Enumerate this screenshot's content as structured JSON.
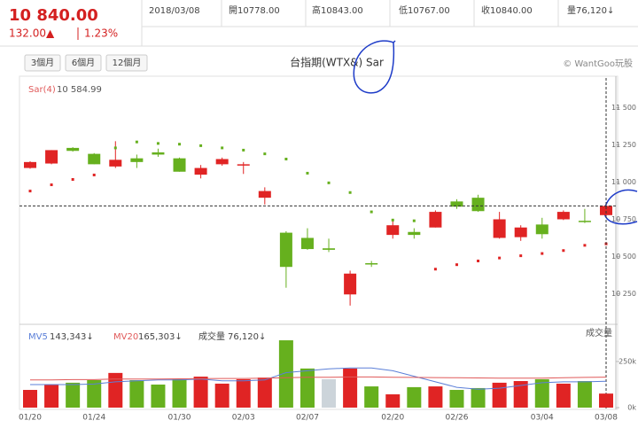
{
  "header": {
    "price": "10 840.00",
    "change": "132.00▲",
    "percent": "1.23%",
    "date": "2018/03/08",
    "open": "開10778.00",
    "high": "高10843.00",
    "low": "低10767.00",
    "close": "收10840.00",
    "volume": "量76,120↓"
  },
  "buttons": [
    "3個月",
    "6個月",
    "12個月"
  ],
  "copyright": "© WantGoo玩股",
  "chart_data": [
    {
      "type": "candlestick",
      "title": "台指期(WTX&) Sar",
      "categories": [
        "01/20",
        null,
        null,
        "01/24",
        null,
        null,
        null,
        "01/30",
        null,
        null,
        "02/03",
        null,
        null,
        "02/07",
        null,
        null,
        null,
        "02/20",
        null,
        null,
        "02/26",
        null,
        null,
        null,
        "03/04",
        null,
        null,
        "03/08"
      ],
      "open": [
        11095,
        11125,
        11230,
        11190,
        11105,
        11160,
        11200,
        11160,
        11050,
        11120,
        11115,
        10895,
        10660,
        10625,
        10555,
        10245,
        10455,
        10645,
        10665,
        10695,
        10870,
        10895,
        10625,
        10630,
        10715,
        10750,
        10740,
        10778
      ],
      "high": [
        11140,
        11215,
        11235,
        11195,
        11275,
        11185,
        11225,
        11165,
        11115,
        11165,
        11135,
        10965,
        10670,
        10690,
        10620,
        10405,
        10470,
        10740,
        10690,
        10810,
        10885,
        10915,
        10800,
        10710,
        10760,
        10810,
        10820,
        10843
      ],
      "low": [
        11090,
        11120,
        11205,
        11120,
        11095,
        11095,
        11170,
        11070,
        11025,
        11110,
        11055,
        10850,
        10290,
        10545,
        10530,
        10170,
        10430,
        10620,
        10620,
        10695,
        10820,
        10800,
        10620,
        10605,
        10620,
        10745,
        10725,
        10767
      ],
      "close": [
        11135,
        11215,
        11210,
        11120,
        11150,
        11135,
        11185,
        11070,
        11095,
        11155,
        11120,
        10940,
        10430,
        10550,
        10545,
        10385,
        10450,
        10710,
        10645,
        10800,
        10835,
        10805,
        10750,
        10695,
        10650,
        10800,
        10735,
        10840
      ],
      "up_color": "#e02424",
      "down_color": "#66b01e",
      "sar": {
        "name": "Sar(4)",
        "current": "10 584.99",
        "values": [
          10940,
          10982,
          11018,
          11048,
          11230,
          11270,
          11260,
          11255,
          11245,
          11230,
          11215,
          11190,
          11155,
          11060,
          10995,
          10930,
          10800,
          10745,
          10740,
          10415,
          10445,
          10470,
          10490,
          10505,
          10520,
          10540,
          10575,
          10584.99
        ]
      },
      "ylim": [
        10050,
        11700
      ],
      "yticks": [
        {
          "value": 11500,
          "label": "11 500"
        },
        {
          "value": 11250,
          "label": "11 250"
        },
        {
          "value": 11000,
          "label": "11 000"
        },
        {
          "value": 10750,
          "label": "10 750"
        },
        {
          "value": 10500,
          "label": "10 500"
        },
        {
          "value": 10250,
          "label": "10 250"
        }
      ]
    },
    {
      "type": "bar",
      "title": "成交量",
      "current": "76,120↓",
      "values": [
        96000,
        125000,
        135000,
        149000,
        188000,
        149000,
        125000,
        154000,
        168000,
        130000,
        154000,
        163000,
        365000,
        212000,
        154000,
        212000,
        115000,
        72000,
        111000,
        115000,
        96000,
        106000,
        135000,
        144000,
        154000,
        130000,
        144000,
        76120
      ],
      "colors": [
        "#e02424",
        "#e02424",
        "#66b01e",
        "#66b01e",
        "#e02424",
        "#66b01e",
        "#66b01e",
        "#66b01e",
        "#e02424",
        "#e02424",
        "#e02424",
        "#e02424",
        "#66b01e",
        "#66b01e",
        "#ccd4da",
        "#e02424",
        "#66b01e",
        "#e02424",
        "#66b01e",
        "#e02424",
        "#66b01e",
        "#66b01e",
        "#e02424",
        "#e02424",
        "#66b01e",
        "#e02424",
        "#66b01e",
        "#e02424"
      ],
      "series": [
        {
          "name": "MV5",
          "color": "#5b7fd8",
          "current": "143,343↓",
          "values": [
            125000,
            125000,
            125000,
            128000,
            140000,
            145000,
            150000,
            150000,
            155000,
            145000,
            145000,
            150000,
            190000,
            200000,
            210000,
            215000,
            215000,
            200000,
            170000,
            140000,
            110000,
            100000,
            105000,
            120000,
            135000,
            140000,
            140000,
            143343
          ]
        },
        {
          "name": "MV20",
          "color": "#e05a5a",
          "current": "165,303↓",
          "values": [
            150000,
            150000,
            152000,
            152000,
            155000,
            155000,
            155000,
            156000,
            157000,
            158000,
            158000,
            160000,
            162000,
            165000,
            165000,
            166000,
            166000,
            165000,
            164000,
            163000,
            162000,
            161000,
            160000,
            160000,
            160000,
            162000,
            164000,
            165303
          ]
        }
      ],
      "ylim": [
        0,
        442000
      ],
      "yticks": [
        {
          "value": 250000,
          "label": "250k"
        },
        {
          "value": 0,
          "label": "0k"
        }
      ]
    }
  ]
}
